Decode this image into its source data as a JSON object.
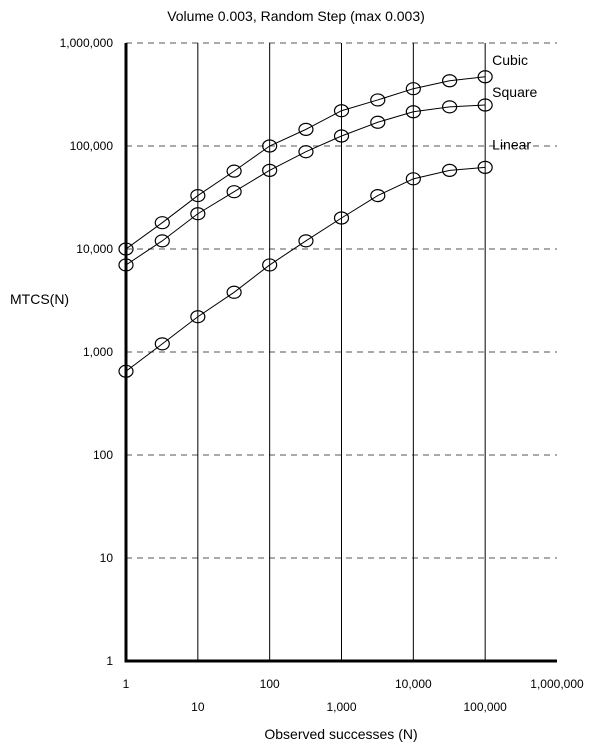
{
  "chart_data": {
    "type": "line",
    "title": "Volume 0.003, Random Step (max 0.003)",
    "xlabel": "Observed successes (N)",
    "ylabel": "MTCS(N)",
    "x_scale": "log",
    "y_scale": "log",
    "xlim": [
      1,
      1000000
    ],
    "ylim": [
      1,
      1000000
    ],
    "x_ticks": [
      "1",
      "10",
      "100",
      "1,000",
      "10,000",
      "100,000",
      "1,000,000"
    ],
    "y_ticks": [
      "1",
      "10",
      "100",
      "1,000",
      "10,000",
      "100,000",
      "1,000,000"
    ],
    "x": [
      1,
      3.2,
      10,
      32,
      100,
      320,
      1000,
      3200,
      10000,
      32000,
      100000
    ],
    "series": [
      {
        "name": "Cubic",
        "values": [
          10000,
          18000,
          33000,
          57000,
          100000,
          145000,
          220000,
          280000,
          360000,
          430000,
          470000
        ]
      },
      {
        "name": "Square",
        "values": [
          7000,
          12000,
          22000,
          36000,
          58000,
          88000,
          125000,
          170000,
          215000,
          240000,
          250000
        ]
      },
      {
        "name": "Linear",
        "values": [
          650,
          1200,
          2200,
          3800,
          7000,
          12000,
          20000,
          33000,
          48000,
          58000,
          62000
        ]
      }
    ],
    "grid": true,
    "legend": "none"
  }
}
